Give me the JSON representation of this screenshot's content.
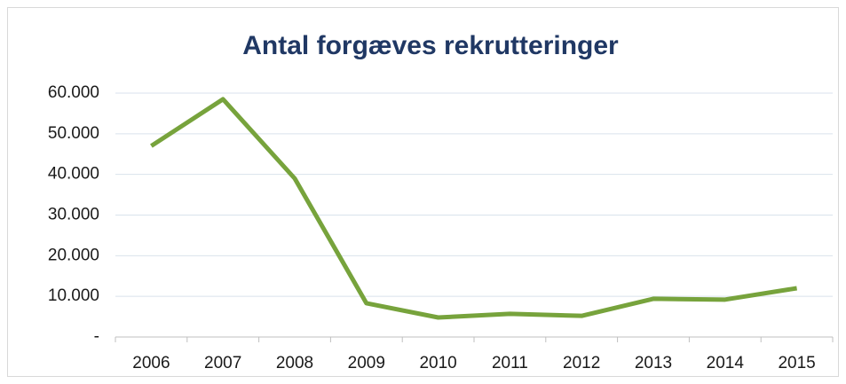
{
  "chart_data": {
    "type": "line",
    "title": "Antal forgæves rekrutteringer",
    "categories": [
      "2006",
      "2007",
      "2008",
      "2009",
      "2010",
      "2011",
      "2012",
      "2013",
      "2014",
      "2015"
    ],
    "series": [
      {
        "name": "Antal forgæves rekrutteringer",
        "color": "#77a33c",
        "values": [
          47000,
          58500,
          39000,
          8300,
          4800,
          5700,
          5200,
          9400,
          9200,
          12000
        ]
      }
    ],
    "ylim": [
      0,
      60000
    ],
    "yticks": [
      {
        "value": 0,
        "label": "-"
      },
      {
        "value": 10000,
        "label": "10.000"
      },
      {
        "value": 20000,
        "label": "20.000"
      },
      {
        "value": 30000,
        "label": "30.000"
      },
      {
        "value": 40000,
        "label": "40.000"
      },
      {
        "value": 50000,
        "label": "50.000"
      },
      {
        "value": 60000,
        "label": "60.000"
      }
    ],
    "grid": true,
    "legend": false
  }
}
